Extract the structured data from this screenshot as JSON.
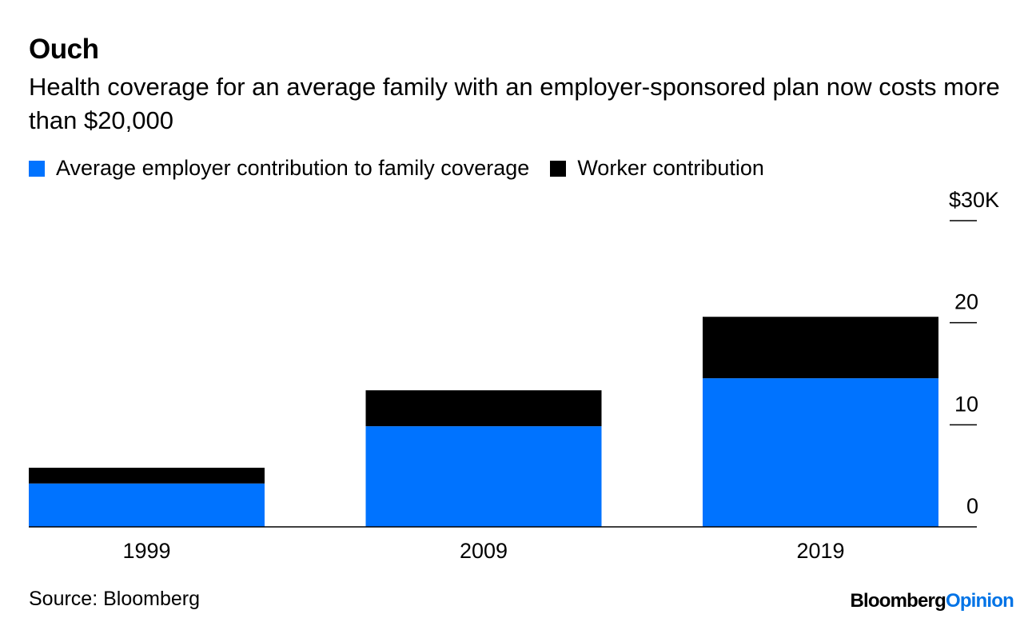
{
  "chart_data": {
    "type": "bar",
    "stacked": true,
    "title": "Ouch",
    "subtitle": "Health coverage for an average family with an employer-sponsored plan now costs more than $20,000",
    "categories": [
      "1999",
      "2009",
      "2019"
    ],
    "series": [
      {
        "name": "Average employer contribution to family coverage",
        "color": "#0073ff",
        "values": [
          4.25,
          9.86,
          14.56
        ]
      },
      {
        "name": "Worker contribution",
        "color": "#000000",
        "values": [
          1.54,
          3.52,
          6.02
        ]
      }
    ],
    "ylim": [
      0,
      30
    ],
    "yticks": [
      0,
      10,
      20,
      30
    ],
    "ytick_labels": [
      "0",
      "10",
      "20",
      "$30K"
    ],
    "yaxis_position": "right",
    "grid": false,
    "legend": "top-left",
    "source": "Source: Bloomberg"
  },
  "logo": {
    "part1": "Bloomberg",
    "part2": "Opinion"
  }
}
